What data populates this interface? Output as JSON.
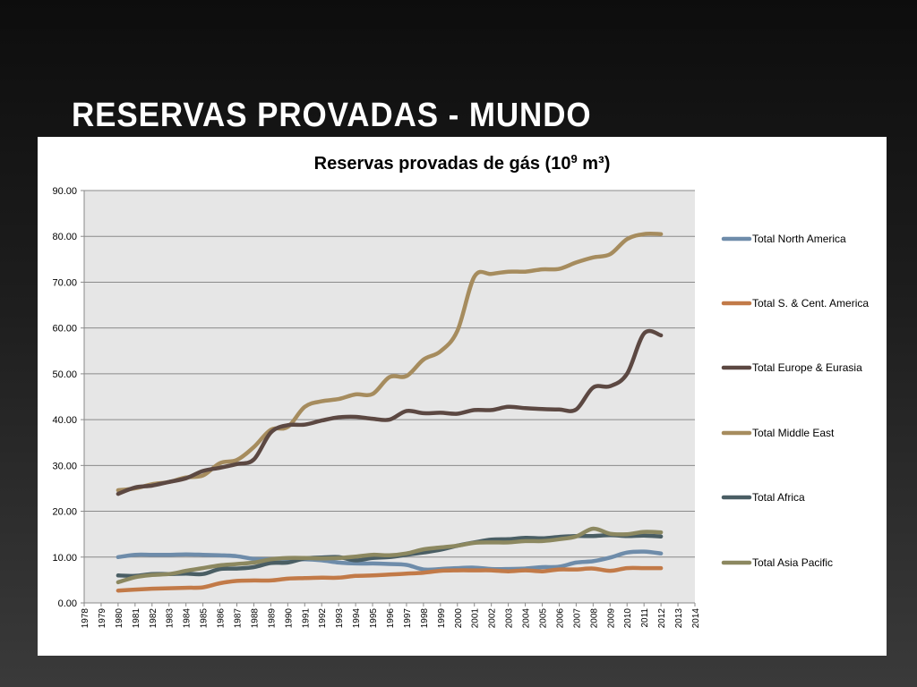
{
  "slide": {
    "title": "RESERVAS PROVADAS - MUNDO"
  },
  "chart_data": {
    "type": "line",
    "title": "Reservas provadas de gás (10",
    "title_sup": "9",
    "title_suffix": " m³)",
    "xlabel": "",
    "ylabel": "",
    "ylim": [
      0,
      90
    ],
    "yticks": [
      "0.00",
      "10.00",
      "20.00",
      "30.00",
      "40.00",
      "50.00",
      "60.00",
      "70.00",
      "80.00",
      "90.00"
    ],
    "xticks": [
      "1978",
      "1979",
      "1980",
      "1981",
      "1982",
      "1983",
      "1984",
      "1985",
      "1986",
      "1987",
      "1988",
      "1989",
      "1990",
      "1991",
      "1992",
      "1993",
      "1994",
      "1995",
      "1996",
      "1997",
      "1998",
      "1999",
      "2000",
      "2001",
      "2002",
      "2003",
      "2004",
      "2005",
      "2006",
      "2007",
      "2008",
      "2009",
      "2010",
      "2011",
      "2012",
      "2013",
      "2014"
    ],
    "grid": true,
    "legend_position": "right",
    "plot_background": "#e6e6e6",
    "x": [
      1980,
      1981,
      1982,
      1983,
      1984,
      1985,
      1986,
      1987,
      1988,
      1989,
      1990,
      1991,
      1992,
      1993,
      1994,
      1995,
      1996,
      1997,
      1998,
      1999,
      2000,
      2001,
      2002,
      2003,
      2004,
      2005,
      2006,
      2007,
      2008,
      2009,
      2010,
      2011,
      2012
    ],
    "series": [
      {
        "name": "Total North America",
        "color": "#6e8caa",
        "values": [
          10.0,
          10.5,
          10.5,
          10.5,
          10.6,
          10.5,
          10.4,
          10.2,
          9.6,
          9.5,
          9.4,
          9.5,
          9.3,
          8.8,
          8.6,
          8.6,
          8.5,
          8.3,
          7.3,
          7.4,
          7.6,
          7.7,
          7.4,
          7.4,
          7.5,
          7.8,
          7.9,
          8.8,
          9.1,
          9.9,
          11.0,
          11.2,
          10.8
        ]
      },
      {
        "name": "Total S. & Cent. America",
        "color": "#c27a48",
        "values": [
          2.7,
          2.9,
          3.1,
          3.2,
          3.3,
          3.4,
          4.3,
          4.8,
          4.9,
          4.9,
          5.3,
          5.4,
          5.5,
          5.5,
          5.9,
          6.0,
          6.2,
          6.4,
          6.6,
          7.0,
          7.1,
          7.1,
          7.1,
          6.9,
          7.1,
          6.9,
          7.3,
          7.3,
          7.5,
          7.0,
          7.6,
          7.6,
          7.6
        ]
      },
      {
        "name": "Total Europe & Eurasia",
        "color": "#5c4842",
        "values": [
          23.8,
          25.2,
          25.6,
          26.4,
          27.2,
          28.8,
          29.5,
          30.3,
          31.3,
          37.2,
          38.8,
          38.9,
          39.8,
          40.5,
          40.6,
          40.2,
          40.0,
          41.9,
          41.4,
          41.5,
          41.3,
          42.1,
          42.1,
          42.8,
          42.5,
          42.3,
          42.2,
          42.2,
          47.0,
          47.3,
          50.0,
          58.8,
          58.4
        ]
      },
      {
        "name": "Total Middle East",
        "color": "#a68c5e",
        "values": [
          24.6,
          25.0,
          25.9,
          26.4,
          27.4,
          27.8,
          30.5,
          31.2,
          34.0,
          37.8,
          38.4,
          42.8,
          44.0,
          44.5,
          45.5,
          45.6,
          49.3,
          49.5,
          53.1,
          54.9,
          59.4,
          71.2,
          71.8,
          72.3,
          72.3,
          72.8,
          72.9,
          74.3,
          75.4,
          76.1,
          79.4,
          80.5,
          80.5
        ]
      },
      {
        "name": "Total Africa",
        "color": "#4a5e64",
        "values": [
          6.0,
          5.9,
          6.3,
          6.3,
          6.4,
          6.3,
          7.4,
          7.5,
          7.8,
          8.7,
          8.8,
          9.7,
          9.9,
          10.0,
          9.3,
          9.8,
          10.0,
          10.5,
          11.0,
          11.6,
          12.5,
          13.2,
          13.8,
          13.9,
          14.2,
          14.1,
          14.4,
          14.6,
          14.6,
          14.8,
          14.6,
          14.7,
          14.5
        ]
      },
      {
        "name": "Total Asia Pacific",
        "color": "#8c8860",
        "values": [
          4.5,
          5.6,
          6.1,
          6.3,
          7.0,
          7.6,
          8.2,
          8.5,
          8.8,
          9.5,
          9.8,
          9.8,
          9.7,
          9.8,
          10.1,
          10.5,
          10.4,
          10.8,
          11.7,
          12.1,
          12.5,
          13.1,
          13.2,
          13.2,
          13.5,
          13.5,
          13.9,
          14.5,
          16.2,
          15.1,
          15.0,
          15.5,
          15.4
        ]
      }
    ]
  }
}
